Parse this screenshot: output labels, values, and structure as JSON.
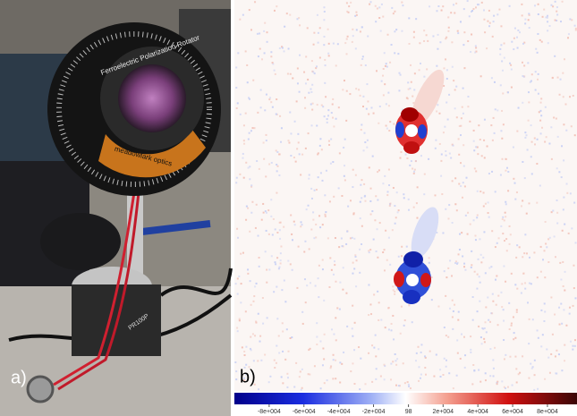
{
  "panels": {
    "a": {
      "label": "a)",
      "texts": [
        "Ferroelectric Polarization Rotator",
        "meadowlark optics",
        "PR100P"
      ]
    },
    "b": {
      "label": "b)"
    }
  },
  "colorbar": {
    "lim": [
      -100000,
      97000
    ],
    "ticks": [
      {
        "value": -80000,
        "label": "-8e+004"
      },
      {
        "value": -60000,
        "label": "-6e+004"
      },
      {
        "value": -40000,
        "label": "-4e+004"
      },
      {
        "value": -20000,
        "label": "-2e+004"
      },
      98,
      {
        "value": 20000,
        "label": "2e+004"
      },
      {
        "value": 40000,
        "label": "4e+004"
      },
      {
        "value": 60000,
        "label": "6e+004"
      },
      {
        "value": 80000,
        "label": "8e+004"
      }
    ]
  }
}
